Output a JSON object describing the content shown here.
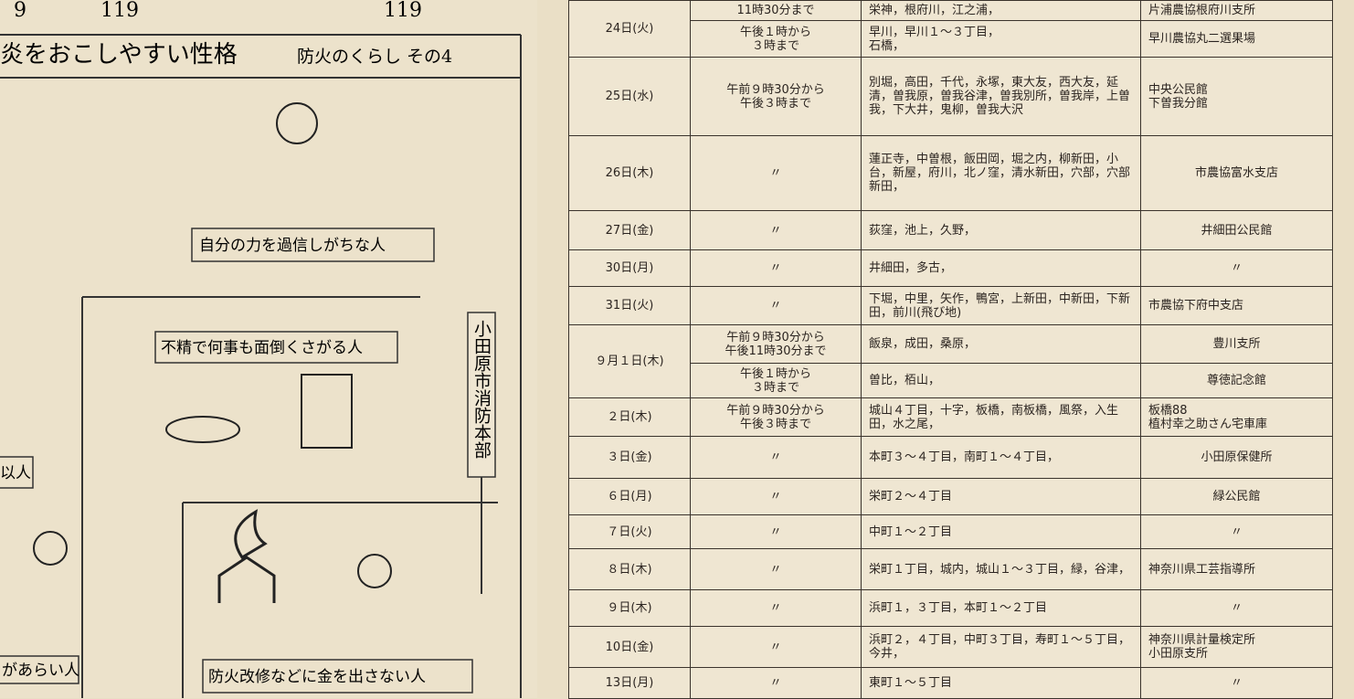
{
  "cartoon": {
    "banner_numbers": [
      "9",
      "119",
      "119"
    ],
    "title": "炎をおこしやすい性格",
    "series_title": "防火のくらし その4",
    "captions": [
      "自分の力を過信しがちな人",
      "不精で何事も面倒くさがる人",
      "以人",
      "があらい人",
      "防火改修などに金を出さない人"
    ],
    "sign": "小田原市消防本部"
  },
  "table": {
    "rows": [
      {
        "date": "24日(火)",
        "slots": [
          {
            "time": "11時30分まで",
            "area": "栄神，根府川，江之浦，",
            "location": "片浦農協根府川支所"
          },
          {
            "time": "午後１時から\n３時まで",
            "area": "早川，早川１〜３丁目，\n石橋，",
            "location": "早川農協丸二選果場"
          }
        ]
      },
      {
        "date": "25日(水)",
        "slots": [
          {
            "time": "午前９時30分から\n午後３時まで",
            "area": "別堀，高田，千代，永塚，東大友，西大友，延清，曽我原，曽我谷津，曽我別所，曽我岸，上曽我，下大井，鬼柳，曽我大沢",
            "location": "中央公民館\n下曽我分館"
          }
        ]
      },
      {
        "date": "26日(木)",
        "slots": [
          {
            "time": "〃",
            "area": "蓮正寺，中曽根，飯田岡，堀之内，柳新田，小台，新屋，府川，北ノ窪，清水新田，穴部，穴部新田，",
            "location": "市農協富水支店"
          }
        ]
      },
      {
        "date": "27日(金)",
        "slots": [
          {
            "time": "〃",
            "area": "荻窪，池上，久野，",
            "location": "井細田公民館"
          }
        ]
      },
      {
        "date": "30日(月)",
        "slots": [
          {
            "time": "〃",
            "area": "井細田，多古，",
            "location": "〃"
          }
        ]
      },
      {
        "date": "31日(火)",
        "slots": [
          {
            "time": "〃",
            "area": "下堀，中里，矢作，鴨宮，上新田，中新田，下新田，前川(飛び地)",
            "location": "市農協下府中支店"
          }
        ]
      },
      {
        "date": "９月１日(木)",
        "slots": [
          {
            "time": "午前９時30分から\n午後11時30分まで",
            "area": "飯泉，成田，桑原，",
            "location": "豊川支所"
          },
          {
            "time": "午後１時から\n３時まで",
            "area": "曽比，栢山，",
            "location": "尊徳記念館"
          }
        ]
      },
      {
        "date": "２日(木)",
        "slots": [
          {
            "time": "午前９時30分から\n午後３時まで",
            "area": "城山４丁目，十字，板橋，南板橋，風祭，入生田，水之尾，",
            "location": "板橋88\n植村幸之助さん宅車庫"
          }
        ]
      },
      {
        "date": "３日(金)",
        "slots": [
          {
            "time": "〃",
            "area": "本町３〜４丁目，南町１〜４丁目，",
            "location": "小田原保健所"
          }
        ]
      },
      {
        "date": "６日(月)",
        "slots": [
          {
            "time": "〃",
            "area": "栄町２〜４丁目",
            "location": "緑公民館"
          }
        ]
      },
      {
        "date": "７日(火)",
        "slots": [
          {
            "time": "〃",
            "area": "中町１〜２丁目",
            "location": "〃"
          }
        ]
      },
      {
        "date": "８日(木)",
        "slots": [
          {
            "time": "〃",
            "area": "栄町１丁目，城内，城山１〜３丁目，緑，谷津，",
            "location": "神奈川県工芸指導所"
          }
        ]
      },
      {
        "date": "９日(木)",
        "slots": [
          {
            "time": "〃",
            "area": "浜町１，３丁目，本町１〜２丁目",
            "location": "〃"
          }
        ]
      },
      {
        "date": "10日(金)",
        "slots": [
          {
            "time": "〃",
            "area": "浜町２，４丁目，中町３丁目，寿町１〜５丁目，今井，",
            "location": "神奈川県計量検定所\n小田原支所"
          }
        ]
      },
      {
        "date": "13日(月)",
        "slots": [
          {
            "time": "〃",
            "area": "東町１〜５丁目",
            "location": "〃"
          }
        ]
      }
    ]
  }
}
